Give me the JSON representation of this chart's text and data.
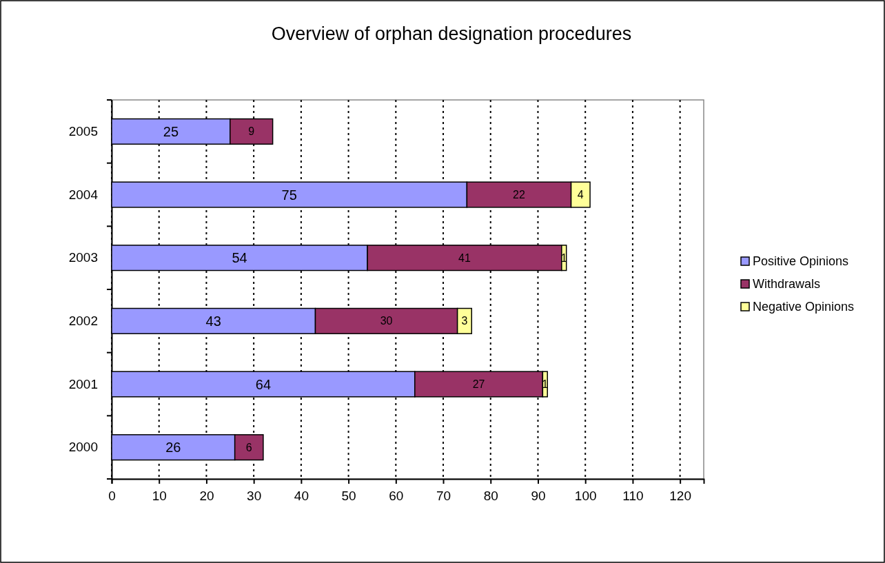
{
  "chart_data": {
    "type": "bar",
    "title": "Overview of orphan designation procedures",
    "orientation": "horizontal",
    "stacked": true,
    "categories": [
      "2005",
      "2004",
      "2003",
      "2002",
      "2001",
      "2000"
    ],
    "series": [
      {
        "name": "Positive Opinions",
        "color": "#9999ff",
        "values": [
          25,
          75,
          54,
          43,
          64,
          26
        ]
      },
      {
        "name": "Withdrawals",
        "color": "#993366",
        "values": [
          9,
          22,
          41,
          30,
          27,
          6
        ]
      },
      {
        "name": "Negative Opinions",
        "color": "#ffff99",
        "values": [
          null,
          4,
          1,
          3,
          1,
          null
        ]
      }
    ],
    "xlim": [
      0,
      125
    ],
    "xticks": [
      0,
      10,
      20,
      30,
      40,
      50,
      60,
      70,
      80,
      90,
      100,
      110,
      120
    ],
    "grid": "x",
    "line_style": "dotted",
    "legend": "right",
    "data_labels": true
  }
}
